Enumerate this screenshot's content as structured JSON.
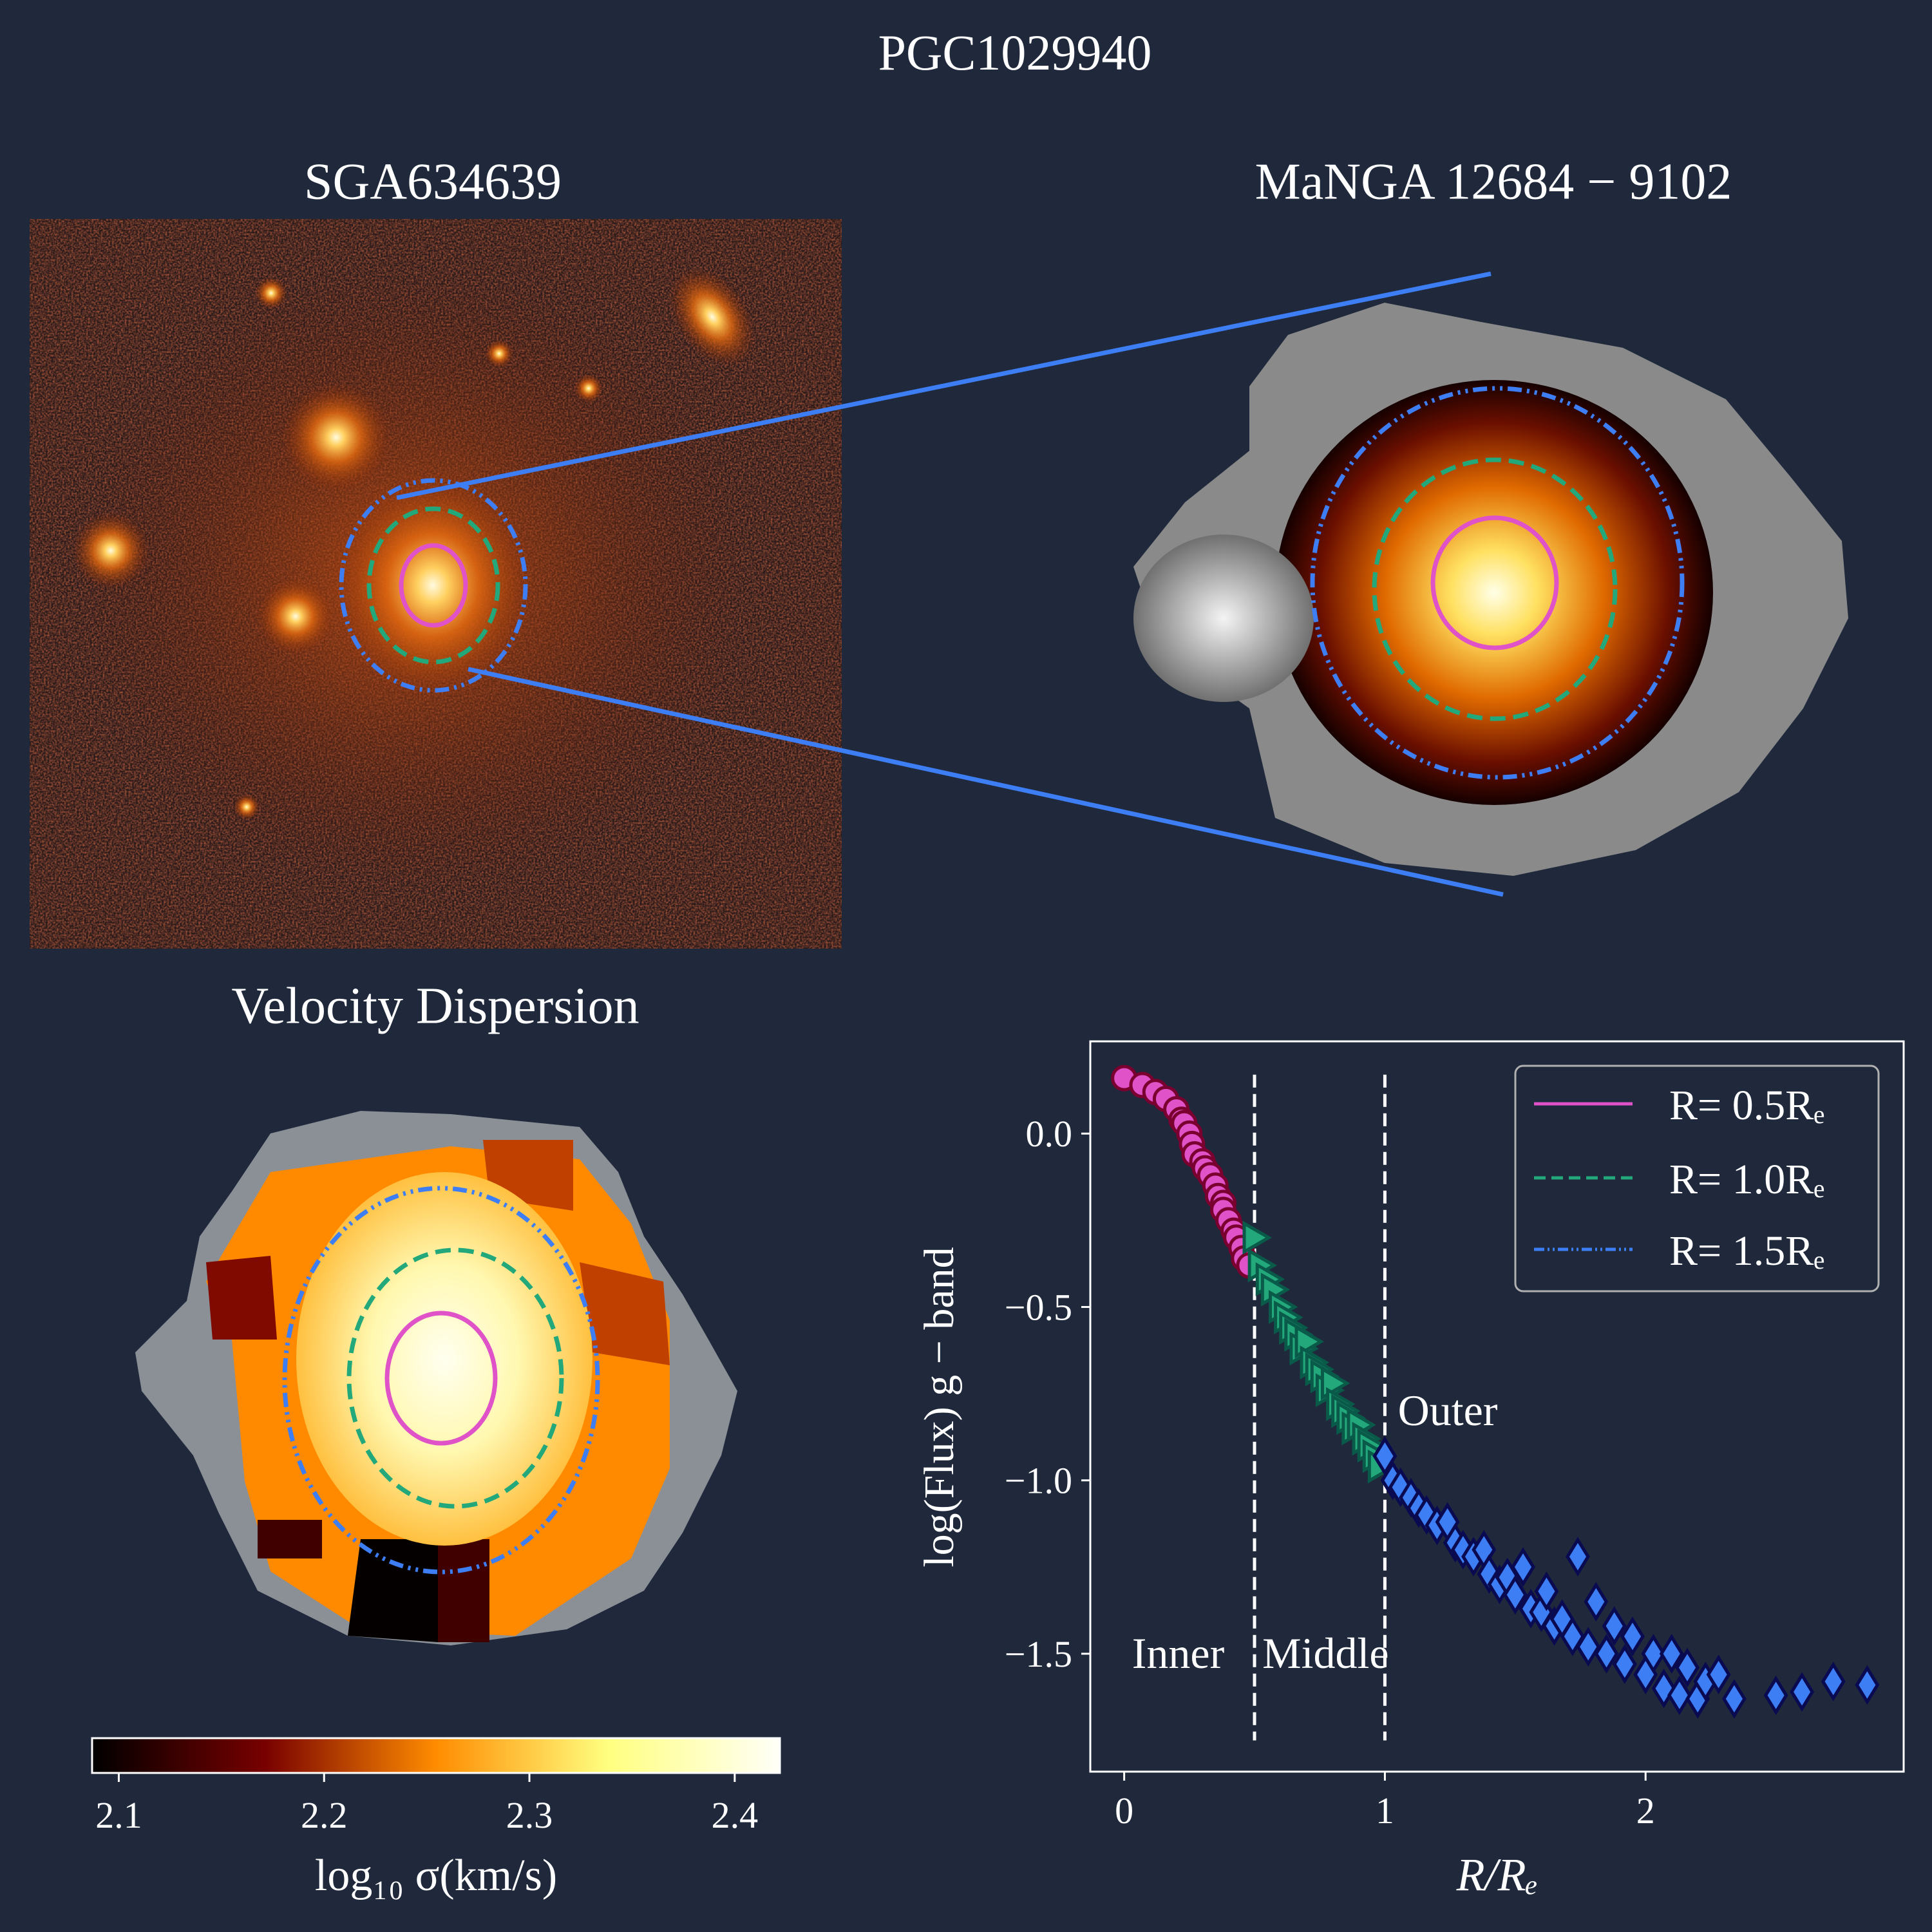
{
  "title": "PGC1029940",
  "panels": {
    "image_title": "SGA634639",
    "manga_title": "MaNGA 12684 − 9102",
    "veldisp_title": "Velocity Dispersion"
  },
  "colorbar": {
    "label": "log₁₀ σ(km/s)",
    "ticks": [
      "2.1",
      "2.2",
      "2.3",
      "2.4"
    ],
    "tick_values": [
      2.1,
      2.2,
      2.3,
      2.4
    ],
    "range": [
      2.087,
      2.422
    ]
  },
  "colors": {
    "background": "#1f293b",
    "inner": "#e052c8",
    "middle": "#22a87a",
    "outer": "#3d7ef5"
  },
  "chart_data": {
    "type": "scatter",
    "xlabel": "R/Rₑ",
    "ylabel": "log(Flux) g − band",
    "xlim": [
      -0.13,
      2.99
    ],
    "ylim": [
      -1.84,
      0.266
    ],
    "xticks": [
      0,
      1,
      2
    ],
    "xtick_labels": [
      "0",
      "1",
      "2"
    ],
    "yticks": [
      0.0,
      -0.5,
      -1.0,
      -1.5
    ],
    "ytick_labels": [
      "0.0",
      "−0.5",
      "−1.0",
      "−1.5"
    ],
    "vlines": [
      0.5,
      1.0
    ],
    "annotations": [
      {
        "text": "Inner",
        "x": 0.03,
        "y": -1.5
      },
      {
        "text": "Middle",
        "x": 0.53,
        "y": -1.5
      },
      {
        "text": "Outer",
        "x": 1.05,
        "y": -0.8
      }
    ],
    "legend": {
      "placement": "top-right",
      "entries": [
        "R= 0.5Rₑ",
        "R= 1.0Rₑ",
        "R= 1.5Rₑ"
      ]
    },
    "series": [
      {
        "name": "Inner",
        "marker": "circle",
        "points": [
          [
            0.0,
            0.16
          ],
          [
            0.07,
            0.14
          ],
          [
            0.12,
            0.12
          ],
          [
            0.16,
            0.1
          ],
          [
            0.2,
            0.07
          ],
          [
            0.22,
            0.04
          ],
          [
            0.23,
            0.03
          ],
          [
            0.25,
            0.0
          ],
          [
            0.26,
            -0.03
          ],
          [
            0.27,
            -0.06
          ],
          [
            0.3,
            -0.08
          ],
          [
            0.31,
            -0.1
          ],
          [
            0.33,
            -0.12
          ],
          [
            0.35,
            -0.15
          ],
          [
            0.36,
            -0.18
          ],
          [
            0.38,
            -0.2
          ],
          [
            0.38,
            -0.22
          ],
          [
            0.4,
            -0.25
          ],
          [
            0.42,
            -0.28
          ],
          [
            0.43,
            -0.3
          ],
          [
            0.45,
            -0.33
          ],
          [
            0.46,
            -0.36
          ],
          [
            0.48,
            -0.38
          ]
        ]
      },
      {
        "name": "Middle",
        "marker": "triangle",
        "points": [
          [
            0.5,
            -0.3
          ],
          [
            0.52,
            -0.38
          ],
          [
            0.55,
            -0.42
          ],
          [
            0.57,
            -0.45
          ],
          [
            0.6,
            -0.5
          ],
          [
            0.62,
            -0.53
          ],
          [
            0.64,
            -0.56
          ],
          [
            0.66,
            -0.58
          ],
          [
            0.68,
            -0.62
          ],
          [
            0.7,
            -0.6
          ],
          [
            0.72,
            -0.66
          ],
          [
            0.74,
            -0.68
          ],
          [
            0.76,
            -0.7
          ],
          [
            0.78,
            -0.74
          ],
          [
            0.8,
            -0.72
          ],
          [
            0.82,
            -0.78
          ],
          [
            0.84,
            -0.8
          ],
          [
            0.86,
            -0.82
          ],
          [
            0.88,
            -0.85
          ],
          [
            0.9,
            -0.84
          ],
          [
            0.92,
            -0.88
          ],
          [
            0.94,
            -0.9
          ],
          [
            0.96,
            -0.93
          ],
          [
            0.98,
            -0.96
          ]
        ]
      },
      {
        "name": "Outer",
        "marker": "diamond",
        "points": [
          [
            1.0,
            -0.93
          ],
          [
            1.03,
            -1.0
          ],
          [
            1.06,
            -1.02
          ],
          [
            1.1,
            -1.05
          ],
          [
            1.13,
            -1.08
          ],
          [
            1.16,
            -1.1
          ],
          [
            1.2,
            -1.13
          ],
          [
            1.24,
            -1.12
          ],
          [
            1.27,
            -1.18
          ],
          [
            1.3,
            -1.2
          ],
          [
            1.34,
            -1.22
          ],
          [
            1.38,
            -1.2
          ],
          [
            1.4,
            -1.27
          ],
          [
            1.44,
            -1.3
          ],
          [
            1.47,
            -1.28
          ],
          [
            1.5,
            -1.33
          ],
          [
            1.53,
            -1.25
          ],
          [
            1.56,
            -1.37
          ],
          [
            1.6,
            -1.38
          ],
          [
            1.62,
            -1.32
          ],
          [
            1.65,
            -1.42
          ],
          [
            1.68,
            -1.4
          ],
          [
            1.72,
            -1.45
          ],
          [
            1.74,
            -1.22
          ],
          [
            1.78,
            -1.48
          ],
          [
            1.81,
            -1.35
          ],
          [
            1.85,
            -1.5
          ],
          [
            1.88,
            -1.42
          ],
          [
            1.92,
            -1.53
          ],
          [
            1.95,
            -1.45
          ],
          [
            2.0,
            -1.56
          ],
          [
            2.03,
            -1.5
          ],
          [
            2.07,
            -1.6
          ],
          [
            2.1,
            -1.5
          ],
          [
            2.13,
            -1.62
          ],
          [
            2.16,
            -1.54
          ],
          [
            2.2,
            -1.63
          ],
          [
            2.23,
            -1.58
          ],
          [
            2.28,
            -1.56
          ],
          [
            2.34,
            -1.63
          ],
          [
            2.5,
            -1.62
          ],
          [
            2.6,
            -1.61
          ],
          [
            2.72,
            -1.58
          ],
          [
            2.85,
            -1.59
          ]
        ]
      }
    ]
  }
}
